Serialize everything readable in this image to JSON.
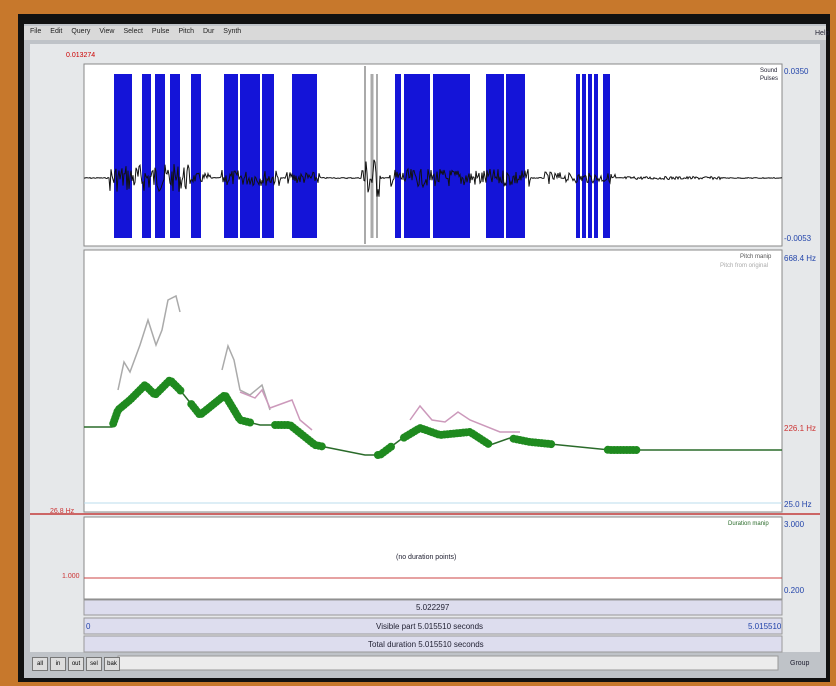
{
  "window": {
    "menu": [
      "File",
      "Edit",
      "Query",
      "View",
      "Select",
      "Pulse",
      "Pitch",
      "Dur",
      "Synth"
    ],
    "help": "Help",
    "sound": {
      "cursor_value": "0.013274",
      "legend": [
        "Sound",
        "Pulses"
      ],
      "top": "0.0350",
      "bottom": "-0.0053"
    },
    "pitch": {
      "legend": [
        "Pitch manip",
        "Pitch from original"
      ],
      "top": "668.4 Hz",
      "cursor": "226.1 Hz",
      "bottom": "25.0 Hz",
      "left": "26.8 Hz"
    },
    "duration": {
      "legend": "Duration manip",
      "top": "3.000",
      "empty": "(no duration points)",
      "left": "1.000",
      "bottom": "0.200"
    },
    "footer": {
      "cursor_time": "5.022297",
      "start": "0",
      "visible": "Visible part 5.015510 seconds",
      "end": "5.015510",
      "total": "Total duration 5.015510 seconds"
    },
    "buttons": [
      "all",
      "in",
      "out",
      "sel",
      "bak"
    ],
    "group": "Group"
  }
}
